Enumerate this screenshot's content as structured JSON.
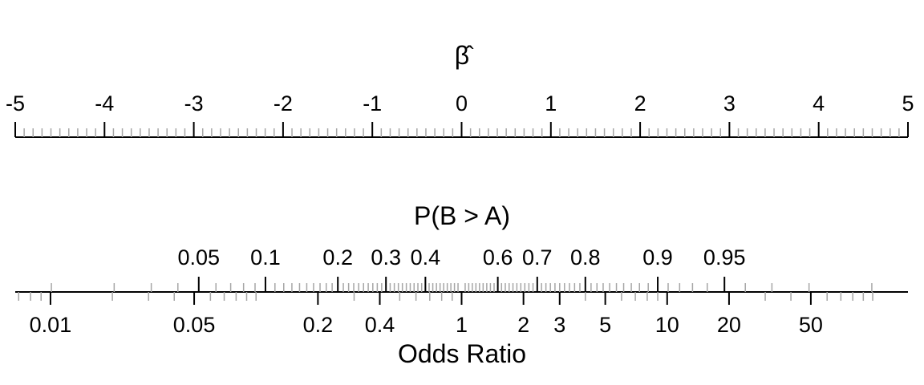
{
  "chart_data": [
    {
      "type": "nomogram-axis",
      "title": "β̂",
      "range": [
        -5,
        5
      ],
      "major_ticks": [
        -5,
        -4,
        -3,
        -2,
        -1,
        0,
        1,
        2,
        3,
        4,
        5
      ],
      "tick_labels": [
        "-5",
        "-4",
        "-3",
        "-2",
        "-1",
        "0",
        "1",
        "2",
        "3",
        "4",
        "5"
      ],
      "minor_tick_step": 0.1
    },
    {
      "type": "nomogram-axis",
      "title": "P(B > A)",
      "scale": "logit",
      "major_ticks": [
        0.05,
        0.1,
        0.2,
        0.3,
        0.4,
        0.6,
        0.7,
        0.8,
        0.9,
        0.95
      ],
      "tick_labels": [
        "0.05",
        "0.1",
        "0.2",
        "0.3",
        "0.4",
        "0.6",
        "0.7",
        "0.8",
        "0.9",
        "0.95"
      ]
    },
    {
      "type": "nomogram-axis",
      "title": "Odds Ratio",
      "scale": "log",
      "major_ticks": [
        0.01,
        0.05,
        0.2,
        0.4,
        1,
        2,
        3,
        5,
        10,
        20,
        50
      ],
      "tick_labels": [
        "0.01",
        "0.05",
        "0.2",
        "0.4",
        "1",
        "2",
        "3",
        "5",
        "10",
        "20",
        "50"
      ]
    }
  ],
  "colors": {
    "major_tick": "#000000",
    "minor_tick": "#a6a6a6"
  }
}
